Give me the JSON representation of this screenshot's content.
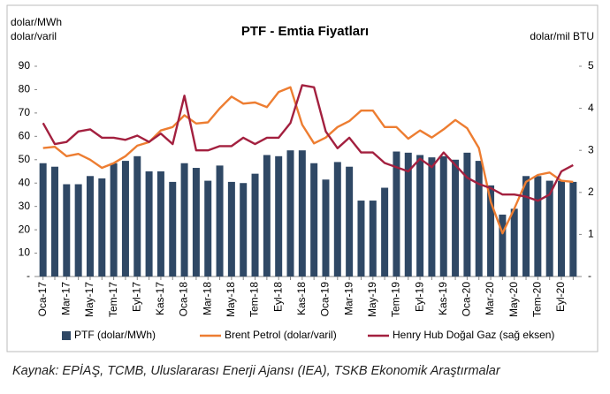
{
  "chart_data": {
    "type": "bar",
    "title": "PTF - Emtia Fiyatları",
    "y_axis_label": "dolar/MWh",
    "y_axis_label_2": "dolar/varil",
    "y2_axis_label": "dolar/mil BTU",
    "source": "Kaynak: EPİAŞ, TCMB, Uluslararası Enerji Ajansı (IEA), TSKB Ekonomik Araştırmalar",
    "categories": [
      "Oca-17",
      null,
      "Mar-17",
      null,
      "May-17",
      null,
      "Tem-17",
      null,
      "Eyl-17",
      null,
      "Kas-17",
      null,
      "Oca-18",
      null,
      "Mar-18",
      null,
      "May-18",
      null,
      "Tem-18",
      null,
      "Eyl-18",
      null,
      "Kas-18",
      null,
      "Oca-19",
      null,
      "Mar-19",
      null,
      "May-19",
      null,
      "Tem-19",
      null,
      "Eyl-19",
      null,
      "Kas-19",
      null,
      "Oca-20",
      null,
      "Mar-20",
      null,
      "May-20",
      null,
      "Tem-20",
      null,
      "Eyl-20",
      null
    ],
    "series": [
      {
        "name": "PTF (dolar/MWh)",
        "type": "bar",
        "color": "#2f4865",
        "values": [
          48.5,
          47,
          39.5,
          39.5,
          43,
          42,
          48.5,
          49.5,
          51.5,
          45,
          45,
          40.5,
          48.5,
          46.5,
          41,
          47.5,
          40.5,
          40,
          44,
          52,
          51.5,
          54,
          54,
          48.5,
          41.5,
          49,
          47,
          32.5,
          32.5,
          38,
          53.5,
          53,
          52,
          51,
          51.5,
          50,
          53,
          49.5,
          39,
          26.5,
          29,
          43,
          43,
          41,
          41,
          40.5
        ]
      },
      {
        "name": "Brent Petrol (dolar/varil)",
        "type": "line",
        "color": "#ed7d31",
        "values": [
          55,
          55.5,
          51.5,
          52.5,
          50,
          46.5,
          48.5,
          51.5,
          56,
          57.5,
          62.5,
          64,
          69,
          65.5,
          66,
          72,
          77,
          74,
          74.5,
          72.5,
          79,
          81,
          65,
          57,
          59.5,
          64,
          66.5,
          71,
          71,
          64,
          64,
          59,
          62.5,
          59.5,
          63,
          67,
          63.5,
          55,
          32,
          18.5,
          29,
          40.5,
          43.5,
          44.5,
          41,
          40.5
        ]
      },
      {
        "name": "Henry Hub Doğal Gaz (sağ eksen)",
        "type": "line",
        "axis": "y2",
        "color": "#a3203f",
        "values": [
          3.65,
          3.15,
          3.2,
          3.45,
          3.5,
          3.3,
          3.3,
          3.25,
          3.35,
          3.2,
          3.4,
          3.15,
          4.3,
          3.0,
          3.0,
          3.1,
          3.1,
          3.3,
          3.15,
          3.3,
          3.3,
          3.65,
          4.55,
          4.5,
          3.45,
          3.05,
          3.3,
          2.95,
          2.95,
          2.7,
          2.6,
          2.5,
          2.8,
          2.6,
          2.95,
          2.65,
          2.35,
          2.2,
          2.1,
          1.95,
          1.95,
          1.9,
          1.8,
          1.95,
          2.5,
          2.65
        ]
      }
    ],
    "ylim": [
      0,
      90
    ],
    "yticks": [
      {
        "value": 0,
        "label": "-"
      },
      10,
      20,
      30,
      40,
      50,
      60,
      70,
      80,
      90
    ],
    "y2lim": [
      0,
      5
    ],
    "y2ticks": [
      {
        "value": 0,
        "label": "-"
      },
      1,
      2,
      3,
      4,
      5
    ],
    "legend": "bottom"
  }
}
